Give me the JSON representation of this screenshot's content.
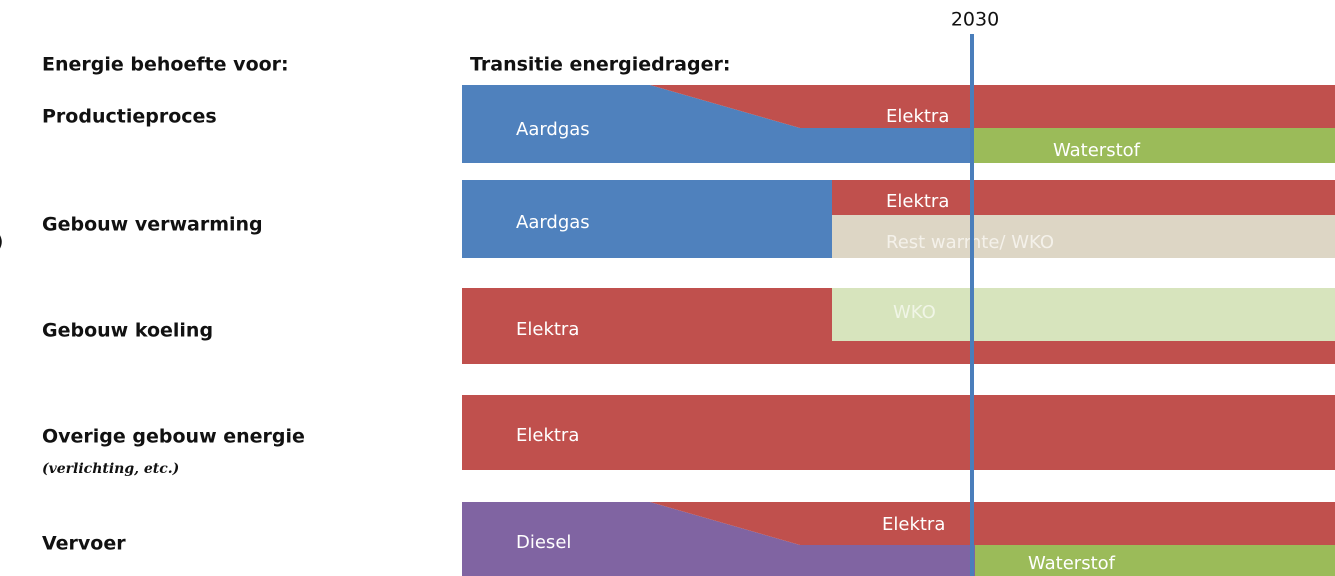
{
  "header": {
    "needs_title": "Energie behoefte voor:",
    "transition_title": "Transitie energiedrager:",
    "milestone": "2030",
    "edge_fragment": ")"
  },
  "rows": [
    {
      "label": "Productieproces",
      "carriers": [
        "Aardgas",
        "Elektra",
        "Waterstof"
      ]
    },
    {
      "label": "Gebouw verwarming",
      "carriers": [
        "Aardgas",
        "Elektra",
        "Rest warmte/ WKO"
      ]
    },
    {
      "label": "Gebouw koeling",
      "carriers": [
        "Elektra",
        "WKO"
      ]
    },
    {
      "label": "Overige gebouw energie",
      "note": "(verlichting, etc.)",
      "carriers": [
        "Elektra"
      ]
    },
    {
      "label": "Vervoer",
      "carriers": [
        "Diesel",
        "Elektra",
        "Waterstof"
      ]
    }
  ]
}
